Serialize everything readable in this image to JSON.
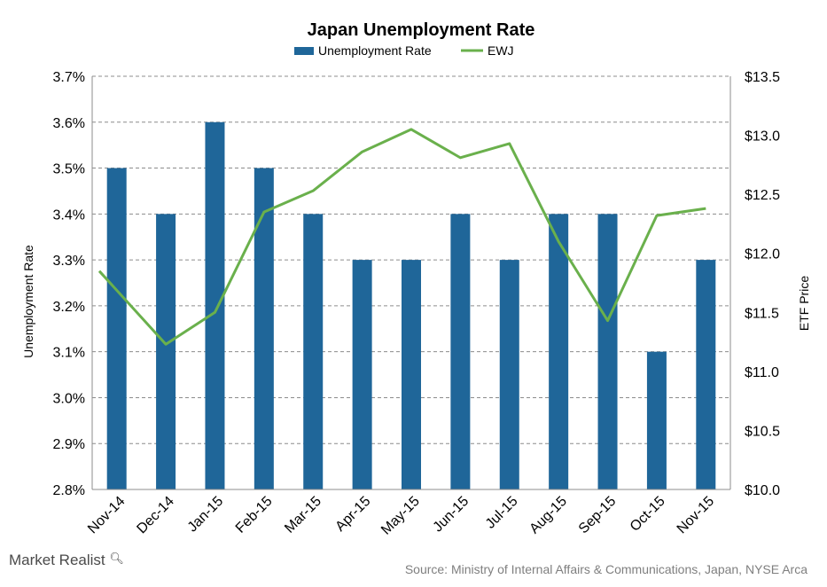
{
  "chart_data": {
    "type": "bar",
    "title": "Japan Unemployment Rate",
    "categories": [
      "Nov-14",
      "Dec-14",
      "Jan-15",
      "Feb-15",
      "Mar-15",
      "Apr-15",
      "May-15",
      "Jun-15",
      "Jul-15",
      "Aug-15",
      "Sep-15",
      "Oct-15",
      "Nov-15"
    ],
    "series": [
      {
        "name": "Unemployment Rate",
        "type": "bar",
        "axis": "left",
        "color": "#1f6699",
        "values": [
          3.5,
          3.4,
          3.6,
          3.5,
          3.4,
          3.3,
          3.3,
          3.4,
          3.3,
          3.4,
          3.4,
          3.1,
          3.3
        ]
      },
      {
        "name": "EWJ",
        "type": "line",
        "axis": "right",
        "color": "#6ab04c",
        "values": [
          11.85,
          11.23,
          11.5,
          12.35,
          12.53,
          12.86,
          13.05,
          12.81,
          12.93,
          12.1,
          11.43,
          12.32,
          12.38
        ]
      }
    ],
    "ylabel_left": "Unemployment Rate",
    "ylabel_right": "ETF Price",
    "ylim_left": [
      2.8,
      3.7
    ],
    "ylim_right": [
      10.0,
      13.5
    ],
    "yticks_left": [
      "2.8%",
      "2.9%",
      "3.0%",
      "3.1%",
      "3.2%",
      "3.3%",
      "3.4%",
      "3.5%",
      "3.6%",
      "3.7%"
    ],
    "yticks_right": [
      "$10.0",
      "$10.5",
      "$11.0",
      "$11.5",
      "$12.0",
      "$12.5",
      "$13.0",
      "$13.5"
    ],
    "grid": true,
    "legend_position": "top-center"
  },
  "footer": {
    "brand": "Market Realist",
    "source": "Source: Ministry of Internal  Affairs & Communications,  Japan, NYSE Arca"
  }
}
